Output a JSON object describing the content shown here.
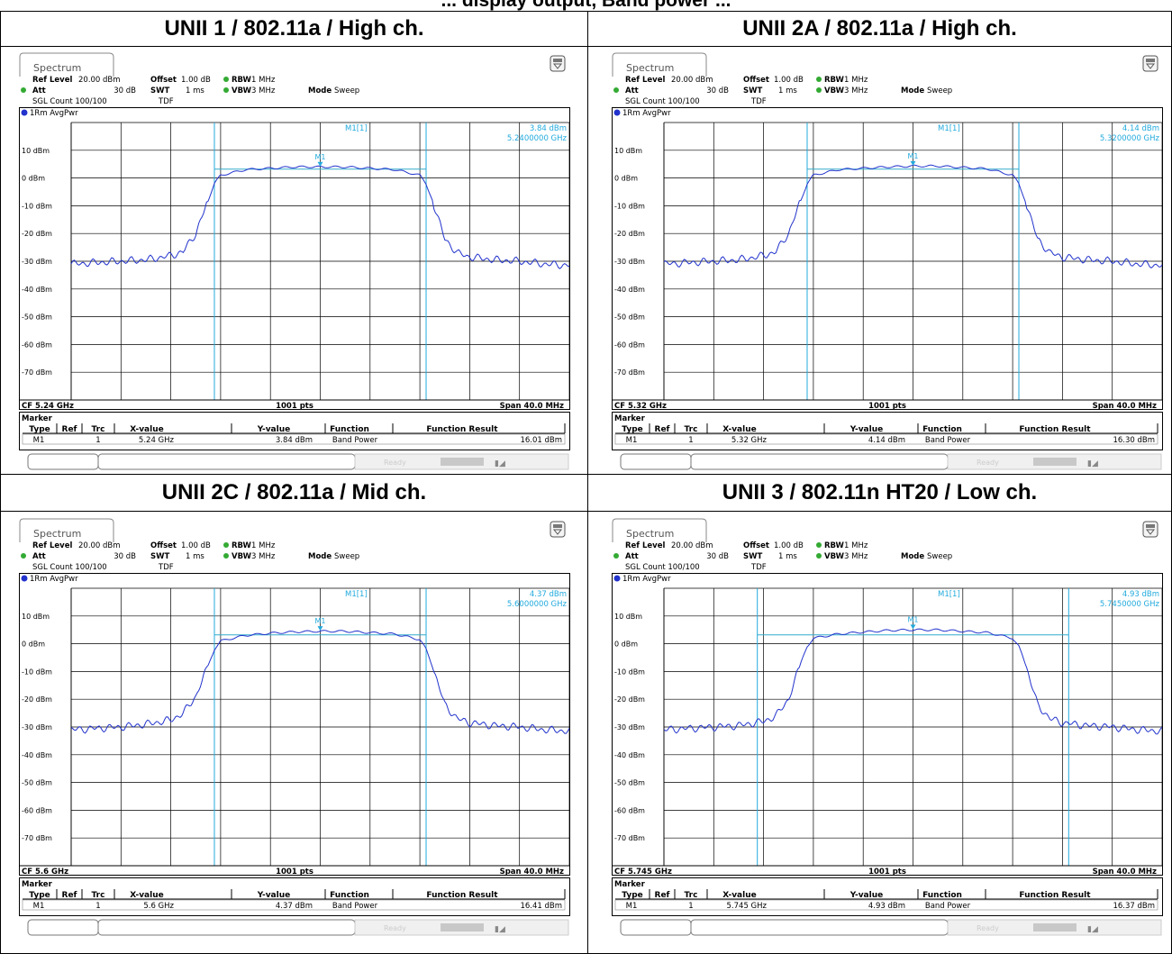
{
  "top_heading": "... display output, Band power ...",
  "panels": [
    {
      "heading": "UNII 1 / 802.11a / High ch.",
      "tab": "Spectrum",
      "settings": {
        "ref_level_label": "Ref Level",
        "ref_level": "20.00 dBm",
        "offset_label": "Offset",
        "offset": "1.00 dB",
        "rbw_label": "RBW",
        "rbw": "1 MHz",
        "att_label": "Att",
        "att": "30 dB",
        "swt_label": "SWT",
        "swt": "1 ms",
        "vbw_label": "VBW",
        "vbw": "3 MHz",
        "mode_label": "Mode",
        "mode": "Sweep",
        "sgl_count": "SGL Count 100/100",
        "tdf": "TDF"
      },
      "trace_label": "1Rm AvgPwr",
      "marker_readout": {
        "name": "M1[1]",
        "level": "3.84 dBm",
        "freq": "5.2400000 GHz"
      },
      "marker_tag": "M1",
      "y_tick_labels": [
        "10 dBm",
        "0 dBm",
        "-10 dBm",
        "-20 dBm",
        "-30 dBm",
        "-40 dBm",
        "-50 dBm",
        "-60 dBm",
        "-70 dBm"
      ],
      "footer": {
        "cf": "CF 5.24 GHz",
        "pts": "1001 pts",
        "span": "Span 40.0 MHz"
      },
      "marker_table": {
        "title": "Marker",
        "headers": [
          "Type",
          "Ref",
          "Trc",
          "X-value",
          "Y-value",
          "Function",
          "Function Result"
        ],
        "row": [
          "M1",
          "",
          "1",
          "5.24 GHz",
          "3.84 dBm",
          "Band Power",
          "16.01 dBm"
        ]
      },
      "status": "Ready"
    },
    {
      "heading": "UNII 2A / 802.11a / High ch.",
      "tab": "Spectrum",
      "settings": {
        "ref_level_label": "Ref Level",
        "ref_level": "20.00 dBm",
        "offset_label": "Offset",
        "offset": "1.00 dB",
        "rbw_label": "RBW",
        "rbw": "1 MHz",
        "att_label": "Att",
        "att": "30 dB",
        "swt_label": "SWT",
        "swt": "1 ms",
        "vbw_label": "VBW",
        "vbw": "3 MHz",
        "mode_label": "Mode",
        "mode": "Sweep",
        "sgl_count": "SGL Count 100/100",
        "tdf": "TDF"
      },
      "trace_label": "1Rm AvgPwr",
      "marker_readout": {
        "name": "M1[1]",
        "level": "4.14 dBm",
        "freq": "5.3200000 GHz"
      },
      "marker_tag": "M1",
      "y_tick_labels": [
        "10 dBm",
        "0 dBm",
        "-10 dBm",
        "-20 dBm",
        "-30 dBm",
        "-40 dBm",
        "-50 dBm",
        "-60 dBm",
        "-70 dBm"
      ],
      "footer": {
        "cf": "CF 5.32 GHz",
        "pts": "1001 pts",
        "span": "Span 40.0 MHz"
      },
      "marker_table": {
        "title": "Marker",
        "headers": [
          "Type",
          "Ref",
          "Trc",
          "X-value",
          "Y-value",
          "Function",
          "Function Result"
        ],
        "row": [
          "M1",
          "",
          "1",
          "5.32 GHz",
          "4.14 dBm",
          "Band Power",
          "16.30 dBm"
        ]
      },
      "status": "Ready"
    },
    {
      "heading": "UNII 2C / 802.11a / Mid ch.",
      "tab": "Spectrum",
      "settings": {
        "ref_level_label": "Ref Level",
        "ref_level": "20.00 dBm",
        "offset_label": "Offset",
        "offset": "1.00 dB",
        "rbw_label": "RBW",
        "rbw": "1 MHz",
        "att_label": "Att",
        "att": "30 dB",
        "swt_label": "SWT",
        "swt": "1 ms",
        "vbw_label": "VBW",
        "vbw": "3 MHz",
        "mode_label": "Mode",
        "mode": "Sweep",
        "sgl_count": "SGL Count 100/100",
        "tdf": "TDF"
      },
      "trace_label": "1Rm AvgPwr",
      "marker_readout": {
        "name": "M1[1]",
        "level": "4.37 dBm",
        "freq": "5.6000000 GHz"
      },
      "marker_tag": "M1",
      "y_tick_labels": [
        "10 dBm",
        "0 dBm",
        "-10 dBm",
        "-20 dBm",
        "-30 dBm",
        "-40 dBm",
        "-50 dBm",
        "-60 dBm",
        "-70 dBm"
      ],
      "footer": {
        "cf": "CF 5.6 GHz",
        "pts": "1001 pts",
        "span": "Span 40.0 MHz"
      },
      "marker_table": {
        "title": "Marker",
        "headers": [
          "Type",
          "Ref",
          "Trc",
          "X-value",
          "Y-value",
          "Function",
          "Function Result"
        ],
        "row": [
          "M1",
          "",
          "1",
          "5.6 GHz",
          "4.37 dBm",
          "Band Power",
          "16.41 dBm"
        ]
      },
      "status": "Ready"
    },
    {
      "heading": "UNII 3 / 802.11n HT20 / Low ch.",
      "tab": "Spectrum",
      "settings": {
        "ref_level_label": "Ref Level",
        "ref_level": "20.00 dBm",
        "offset_label": "Offset",
        "offset": "1.00 dB",
        "rbw_label": "RBW",
        "rbw": "1 MHz",
        "att_label": "Att",
        "att": "30 dB",
        "swt_label": "SWT",
        "swt": "1 ms",
        "vbw_label": "VBW",
        "vbw": "3 MHz",
        "mode_label": "Mode",
        "mode": "Sweep",
        "sgl_count": "SGL Count 100/100",
        "tdf": "TDF"
      },
      "trace_label": "1Rm AvgPwr",
      "marker_readout": {
        "name": "M1[1]",
        "level": "4.93 dBm",
        "freq": "5.7450000 GHz"
      },
      "marker_tag": "M1",
      "y_tick_labels": [
        "10 dBm",
        "0 dBm",
        "-10 dBm",
        "-20 dBm",
        "-30 dBm",
        "-40 dBm",
        "-50 dBm",
        "-60 dBm",
        "-70 dBm"
      ],
      "footer": {
        "cf": "CF 5.745 GHz",
        "pts": "1001 pts",
        "span": "Span 40.0 MHz"
      },
      "marker_table": {
        "title": "Marker",
        "headers": [
          "Type",
          "Ref",
          "Trc",
          "X-value",
          "Y-value",
          "Function",
          "Function Result"
        ],
        "row": [
          "M1",
          "",
          "1",
          "5.745 GHz",
          "4.93 dBm",
          "Band Power",
          "16.37 dBm"
        ]
      },
      "status": "Ready"
    }
  ],
  "colors": {
    "trace": "#2233cc",
    "marker_line": "#22aadd",
    "band_line": "#33aacc",
    "led": "#33aa33",
    "grid": "#000000"
  },
  "chart_data": [
    {
      "type": "line",
      "series": [
        {
          "name": "1Rm AvgPwr",
          "x_mhz_from_cf": [
            -20,
            -18,
            -16,
            -14,
            -12,
            -11,
            -10,
            -9,
            -8.5,
            -8,
            -6,
            -4,
            -2,
            0,
            2,
            4,
            6,
            8,
            8.5,
            9,
            10,
            11,
            12,
            14,
            16,
            18,
            20
          ],
          "y_dbm": [
            -31,
            -30.5,
            -30,
            -29.5,
            -28,
            -26.5,
            -20,
            -8,
            -2,
            1,
            3,
            3.5,
            4,
            4,
            4,
            3.5,
            3,
            1,
            -2,
            -8,
            -22,
            -27,
            -28.5,
            -29.5,
            -30,
            -31,
            -31.5
          ]
        }
      ],
      "marker": {
        "x_ghz": 5.24,
        "y_dbm": 3.84
      },
      "band_power_dbm": 16.01,
      "band_edges_mhz_from_cf": [
        -8.5,
        8.5
      ],
      "ylim": [
        -80,
        20
      ],
      "x_range": "CF 5.24 GHz, Span 40.0 MHz"
    },
    {
      "type": "line",
      "series": [
        {
          "name": "1Rm AvgPwr",
          "x_mhz_from_cf": [
            -20,
            -18,
            -16,
            -14,
            -12,
            -11,
            -10,
            -9,
            -8.5,
            -8,
            -6,
            -4,
            -2,
            0,
            2,
            4,
            6,
            8,
            8.5,
            9,
            10,
            11,
            12,
            14,
            16,
            18,
            20
          ],
          "y_dbm": [
            -31,
            -30.5,
            -30,
            -29.5,
            -28,
            -26.5,
            -20,
            -8,
            -2,
            1,
            3,
            3.5,
            4,
            4.3,
            4.3,
            3.8,
            3.3,
            1,
            -2,
            -8,
            -22,
            -27,
            -28.5,
            -29.5,
            -30,
            -31,
            -31.5
          ]
        }
      ],
      "marker": {
        "x_ghz": 5.32,
        "y_dbm": 4.14
      },
      "band_power_dbm": 16.3,
      "band_edges_mhz_from_cf": [
        -8.5,
        8.5
      ],
      "ylim": [
        -80,
        20
      ],
      "x_range": "CF 5.32 GHz, Span 40.0 MHz"
    },
    {
      "type": "line",
      "series": [
        {
          "name": "1Rm AvgPwr",
          "x_mhz_from_cf": [
            -20,
            -18,
            -16,
            -14,
            -12,
            -11,
            -10,
            -9,
            -8.5,
            -8,
            -6,
            -4,
            -2,
            0,
            2,
            4,
            6,
            8,
            8.5,
            9,
            10,
            11,
            12,
            14,
            16,
            18,
            20
          ],
          "y_dbm": [
            -31,
            -30.5,
            -30,
            -29,
            -27.5,
            -25,
            -19,
            -8,
            -2,
            1,
            3,
            3.8,
            4.3,
            4.5,
            4.5,
            4,
            3.5,
            1.5,
            -2,
            -8,
            -22,
            -27,
            -28.5,
            -29.5,
            -30,
            -31,
            -31.5
          ]
        }
      ],
      "marker": {
        "x_ghz": 5.6,
        "y_dbm": 4.37
      },
      "band_power_dbm": 16.41,
      "band_edges_mhz_from_cf": [
        -8.5,
        8.5
      ],
      "ylim": [
        -80,
        20
      ],
      "x_range": "CF 5.6 GHz, Span 40.0 MHz"
    },
    {
      "type": "line",
      "series": [
        {
          "name": "1Rm AvgPwr",
          "x_mhz_from_cf": [
            -20,
            -18,
            -16,
            -14,
            -12,
            -11,
            -10,
            -9,
            -8.5,
            -8,
            -6,
            -4,
            -2,
            0,
            2,
            4,
            6,
            8,
            8.5,
            9,
            10,
            11,
            12,
            14,
            16,
            18,
            20
          ],
          "y_dbm": [
            -31,
            -30.5,
            -30,
            -29.5,
            -28,
            -26,
            -20,
            -7,
            -1,
            2,
            3.5,
            4.2,
            4.8,
            5,
            5,
            4.5,
            4,
            2,
            -1,
            -7,
            -22,
            -27,
            -28.5,
            -29.5,
            -30,
            -31,
            -31.5
          ]
        }
      ],
      "marker": {
        "x_ghz": 5.745,
        "y_dbm": 4.93
      },
      "band_power_dbm": 16.37,
      "band_edges_mhz_from_cf": [
        -12.5,
        12.5
      ],
      "ylim": [
        -80,
        20
      ],
      "x_range": "CF 5.745 GHz, Span 40.0 MHz"
    }
  ]
}
